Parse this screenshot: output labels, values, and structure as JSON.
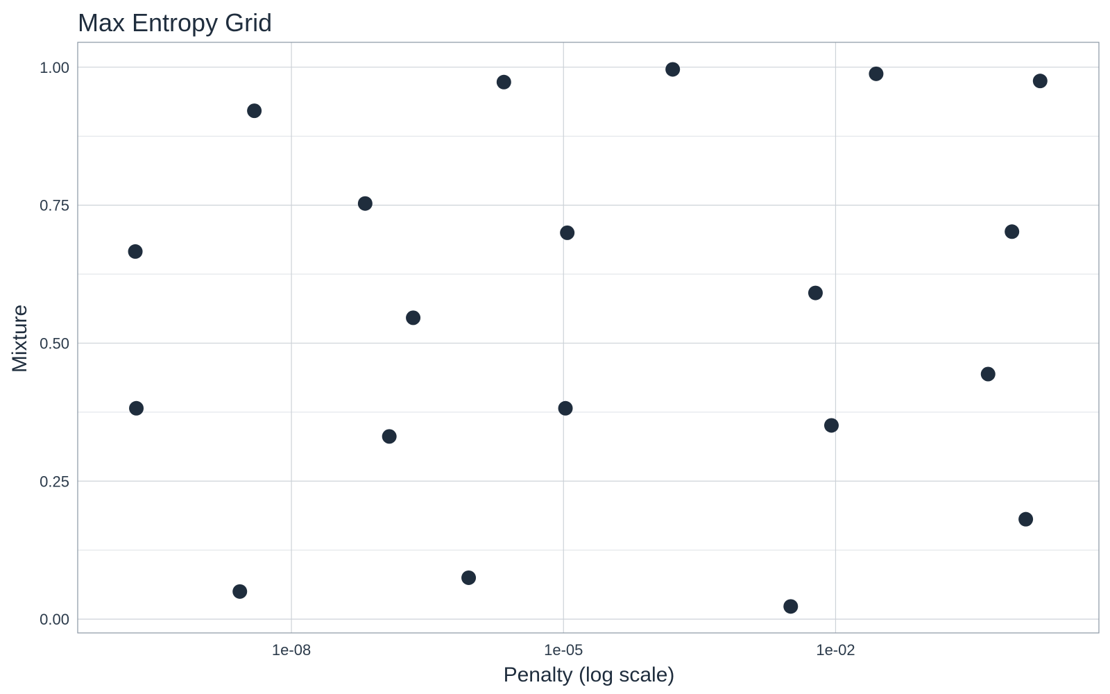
{
  "chart_data": {
    "type": "scatter",
    "title": "Max Entropy Grid",
    "xlabel": "Penalty (log scale)",
    "ylabel": "Mixture",
    "x_scale": "log10",
    "xlim": [
      4.4e-11,
      8.0
    ],
    "ylim": [
      -0.025,
      1.045
    ],
    "x_ticks": [
      1e-08,
      1e-05,
      0.01
    ],
    "x_tick_labels": [
      "1e-08",
      "1e-05",
      "1e-02"
    ],
    "y_ticks": [
      0.0,
      0.25,
      0.5,
      0.75,
      1.0
    ],
    "y_tick_labels": [
      "0.00",
      "0.25",
      "0.50",
      "0.75",
      "1.00"
    ],
    "grid": true,
    "point_color": "#1f2d3d",
    "series": [
      {
        "points": [
          {
            "x": 1.9e-10,
            "y": 0.666
          },
          {
            "x": 1.95e-10,
            "y": 0.382
          },
          {
            "x": 2.7e-09,
            "y": 0.05
          },
          {
            "x": 3.9e-09,
            "y": 0.921
          },
          {
            "x": 6.5e-08,
            "y": 0.753
          },
          {
            "x": 1.2e-07,
            "y": 0.331
          },
          {
            "x": 2.2e-07,
            "y": 0.546
          },
          {
            "x": 9e-07,
            "y": 0.075
          },
          {
            "x": 2.2e-06,
            "y": 0.973
          },
          {
            "x": 1.05e-05,
            "y": 0.382
          },
          {
            "x": 1.1e-05,
            "y": 0.7
          },
          {
            "x": 0.00016,
            "y": 0.996
          },
          {
            "x": 0.0032,
            "y": 0.023
          },
          {
            "x": 0.006,
            "y": 0.591
          },
          {
            "x": 0.009,
            "y": 0.351
          },
          {
            "x": 0.028,
            "y": 0.988
          },
          {
            "x": 0.48,
            "y": 0.444
          },
          {
            "x": 0.88,
            "y": 0.702
          },
          {
            "x": 1.25,
            "y": 0.181
          },
          {
            "x": 1.8,
            "y": 0.975
          }
        ]
      }
    ]
  }
}
